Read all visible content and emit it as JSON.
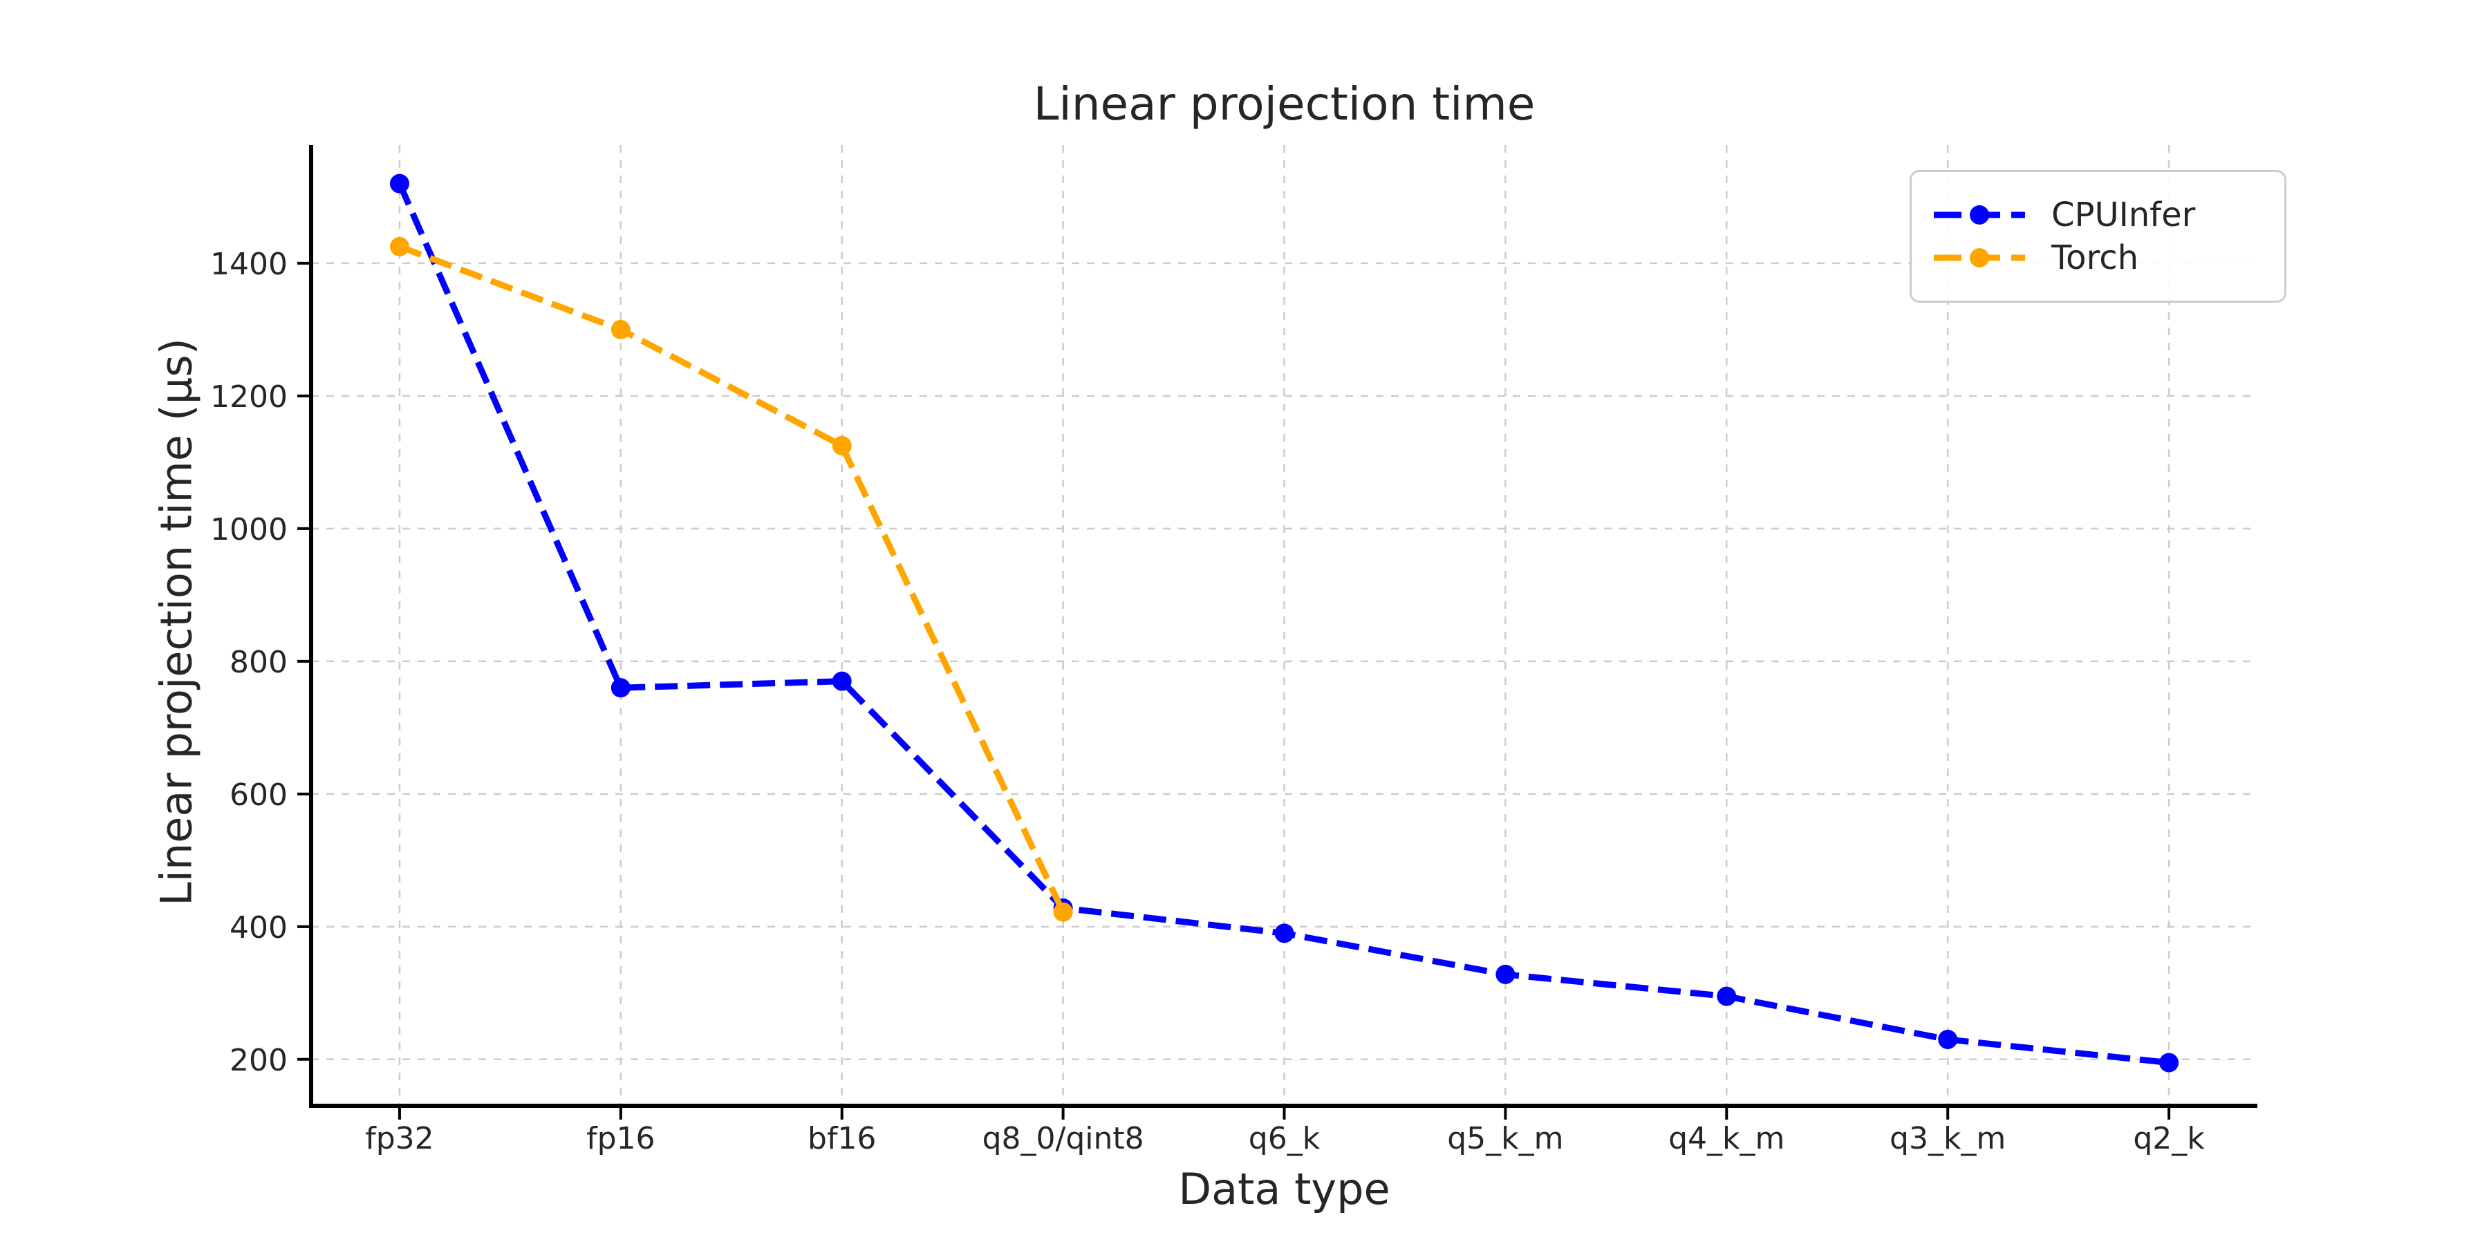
{
  "figure": {
    "title": "Linear projection time"
  },
  "chart_data": {
    "type": "line",
    "title": "Linear projection time",
    "xlabel": "Data type",
    "ylabel": "Linear projection time (µs)",
    "categories": [
      "fp32",
      "fp16",
      "bf16",
      "q8_0/qint8",
      "q6_k",
      "q5_k_m",
      "q4_k_m",
      "q3_k_m",
      "q2_k"
    ],
    "series": [
      {
        "name": "CPUInfer",
        "color": "#0000ff",
        "line_style": "dashed",
        "marker": "circle",
        "values": [
          1520,
          760,
          770,
          428,
          390,
          328,
          295,
          230,
          195
        ]
      },
      {
        "name": "Torch",
        "color": "#ffa500",
        "line_style": "dashed",
        "marker": "circle",
        "values": [
          1425,
          1300,
          1125,
          422,
          null,
          null,
          null,
          null,
          null
        ]
      }
    ],
    "yticks": [
      200,
      400,
      600,
      800,
      1000,
      1200,
      1400
    ],
    "ylim": [
      130,
      1578
    ],
    "grid": "dashed",
    "grid_color": "#cccccc",
    "spine_color": "#000000",
    "text_color": "#262626",
    "legend_position": "upper right"
  },
  "legend": {
    "items": [
      {
        "label": "CPUInfer"
      },
      {
        "label": "Torch"
      }
    ]
  }
}
